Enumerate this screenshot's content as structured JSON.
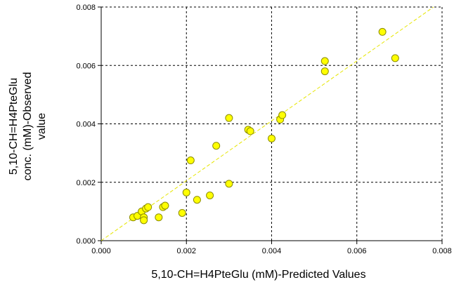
{
  "chart_data": {
    "type": "scatter",
    "xlabel": "5,10-CH=H4PteGlu (mM)-Predicted Values",
    "ylabel_lines": [
      "5,10-CH=H4PteGlu",
      "conc. (mM)-Observed",
      "value"
    ],
    "xlim": [
      0,
      0.008
    ],
    "ylim": [
      0,
      0.008
    ],
    "x_ticks": [
      0,
      0.002,
      0.004,
      0.006,
      0.008
    ],
    "x_tick_labels": [
      "0.000",
      "0.002",
      "0.004",
      "0.006",
      "0.008"
    ],
    "y_ticks": [
      0,
      0.002,
      0.004,
      0.006,
      0.008
    ],
    "y_tick_labels": [
      "0.000",
      "0.002",
      "0.004",
      "0.006",
      "0.008"
    ],
    "grid": true,
    "reference_line": {
      "from": [
        0,
        0
      ],
      "to": [
        0.0078,
        0.008
      ]
    },
    "points": [
      {
        "x": 0.00075,
        "y": 0.0008
      },
      {
        "x": 0.00085,
        "y": 0.00085
      },
      {
        "x": 0.00095,
        "y": 0.001
      },
      {
        "x": 0.001,
        "y": 0.0008
      },
      {
        "x": 0.001,
        "y": 0.0007
      },
      {
        "x": 0.00105,
        "y": 0.0011
      },
      {
        "x": 0.0011,
        "y": 0.00115
      },
      {
        "x": 0.00135,
        "y": 0.0008
      },
      {
        "x": 0.00145,
        "y": 0.00115
      },
      {
        "x": 0.0015,
        "y": 0.0012
      },
      {
        "x": 0.0019,
        "y": 0.00095
      },
      {
        "x": 0.002,
        "y": 0.00165
      },
      {
        "x": 0.0021,
        "y": 0.00275
      },
      {
        "x": 0.00225,
        "y": 0.0014
      },
      {
        "x": 0.00255,
        "y": 0.00155
      },
      {
        "x": 0.0027,
        "y": 0.00325
      },
      {
        "x": 0.003,
        "y": 0.00195
      },
      {
        "x": 0.003,
        "y": 0.0042
      },
      {
        "x": 0.00345,
        "y": 0.0038
      },
      {
        "x": 0.0035,
        "y": 0.00375
      },
      {
        "x": 0.004,
        "y": 0.0035
      },
      {
        "x": 0.0042,
        "y": 0.00415
      },
      {
        "x": 0.00425,
        "y": 0.0043
      },
      {
        "x": 0.00525,
        "y": 0.00615
      },
      {
        "x": 0.00525,
        "y": 0.0058
      },
      {
        "x": 0.0066,
        "y": 0.00715
      },
      {
        "x": 0.0069,
        "y": 0.00625
      }
    ],
    "colors": {
      "marker_fill": "#ffff00",
      "marker_stroke": "#8c8c00",
      "reference_line": "#e6e600",
      "grid": "#000000",
      "axis": "#000000",
      "text": "#000000"
    }
  }
}
